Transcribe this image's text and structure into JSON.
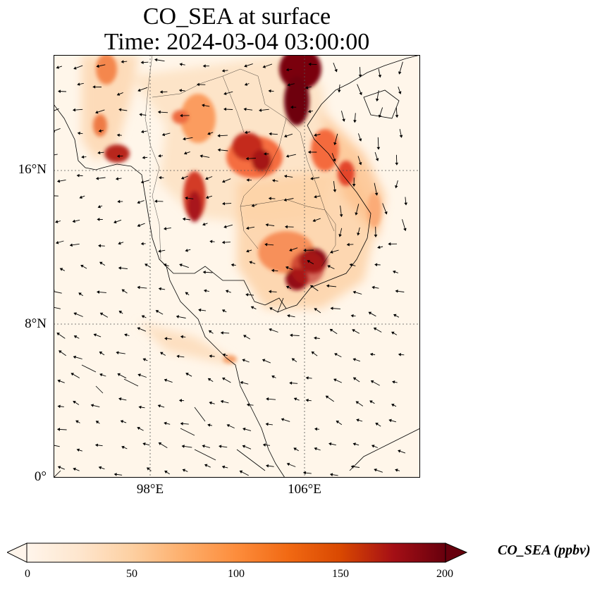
{
  "title": {
    "line1": "CO_SEA at surface",
    "line2": "Time: 2024-03-04 03:00:00"
  },
  "map": {
    "lon_range": [
      93,
      112
    ],
    "lat_range": [
      0,
      22
    ],
    "lon_ticks": [
      {
        "value": 98,
        "label": "98°E"
      },
      {
        "value": 106,
        "label": "106°E"
      }
    ],
    "lat_ticks": [
      {
        "value": 0,
        "label": "0°"
      },
      {
        "value": 8,
        "label": "8°N"
      },
      {
        "value": 16,
        "label": "16°N"
      }
    ],
    "grid": "dotted",
    "wind_vectors": true
  },
  "colorbar": {
    "label": "CO_SEA (ppbv)",
    "min": 0,
    "max": 200,
    "extend": "both",
    "ticks": [
      "0",
      "50",
      "100",
      "150",
      "200"
    ],
    "colors": [
      "#fff5eb",
      "#fee6ce",
      "#fdd0a2",
      "#fdae6b",
      "#fd8d3c",
      "#f16913",
      "#d94801",
      "#a50f15",
      "#67000d"
    ]
  },
  "chart_data": {
    "type": "heatmap",
    "variable": "CO_SEA",
    "units": "ppbv",
    "hotspots": [
      {
        "lon": 105.0,
        "lat": 21.0,
        "value": 200
      },
      {
        "lon": 105.8,
        "lat": 19.5,
        "value": 190
      },
      {
        "lon": 106.7,
        "lat": 11.5,
        "value": 200
      },
      {
        "lon": 105.9,
        "lat": 10.5,
        "value": 200
      },
      {
        "lon": 102.3,
        "lat": 17.5,
        "value": 170
      },
      {
        "lon": 101.8,
        "lat": 18.3,
        "value": 150
      },
      {
        "lon": 100.2,
        "lat": 15.0,
        "value": 170
      },
      {
        "lon": 96.2,
        "lat": 16.8,
        "value": 160
      },
      {
        "lon": 109.0,
        "lat": 15.5,
        "value": 130
      },
      {
        "lon": 99.8,
        "lat": 19.5,
        "value": 120
      },
      {
        "lon": 95.5,
        "lat": 19.8,
        "value": 110
      },
      {
        "lon": 103.8,
        "lat": 13.0,
        "value": 90
      },
      {
        "lon": 101.5,
        "lat": 6.0,
        "value": 80
      }
    ]
  }
}
